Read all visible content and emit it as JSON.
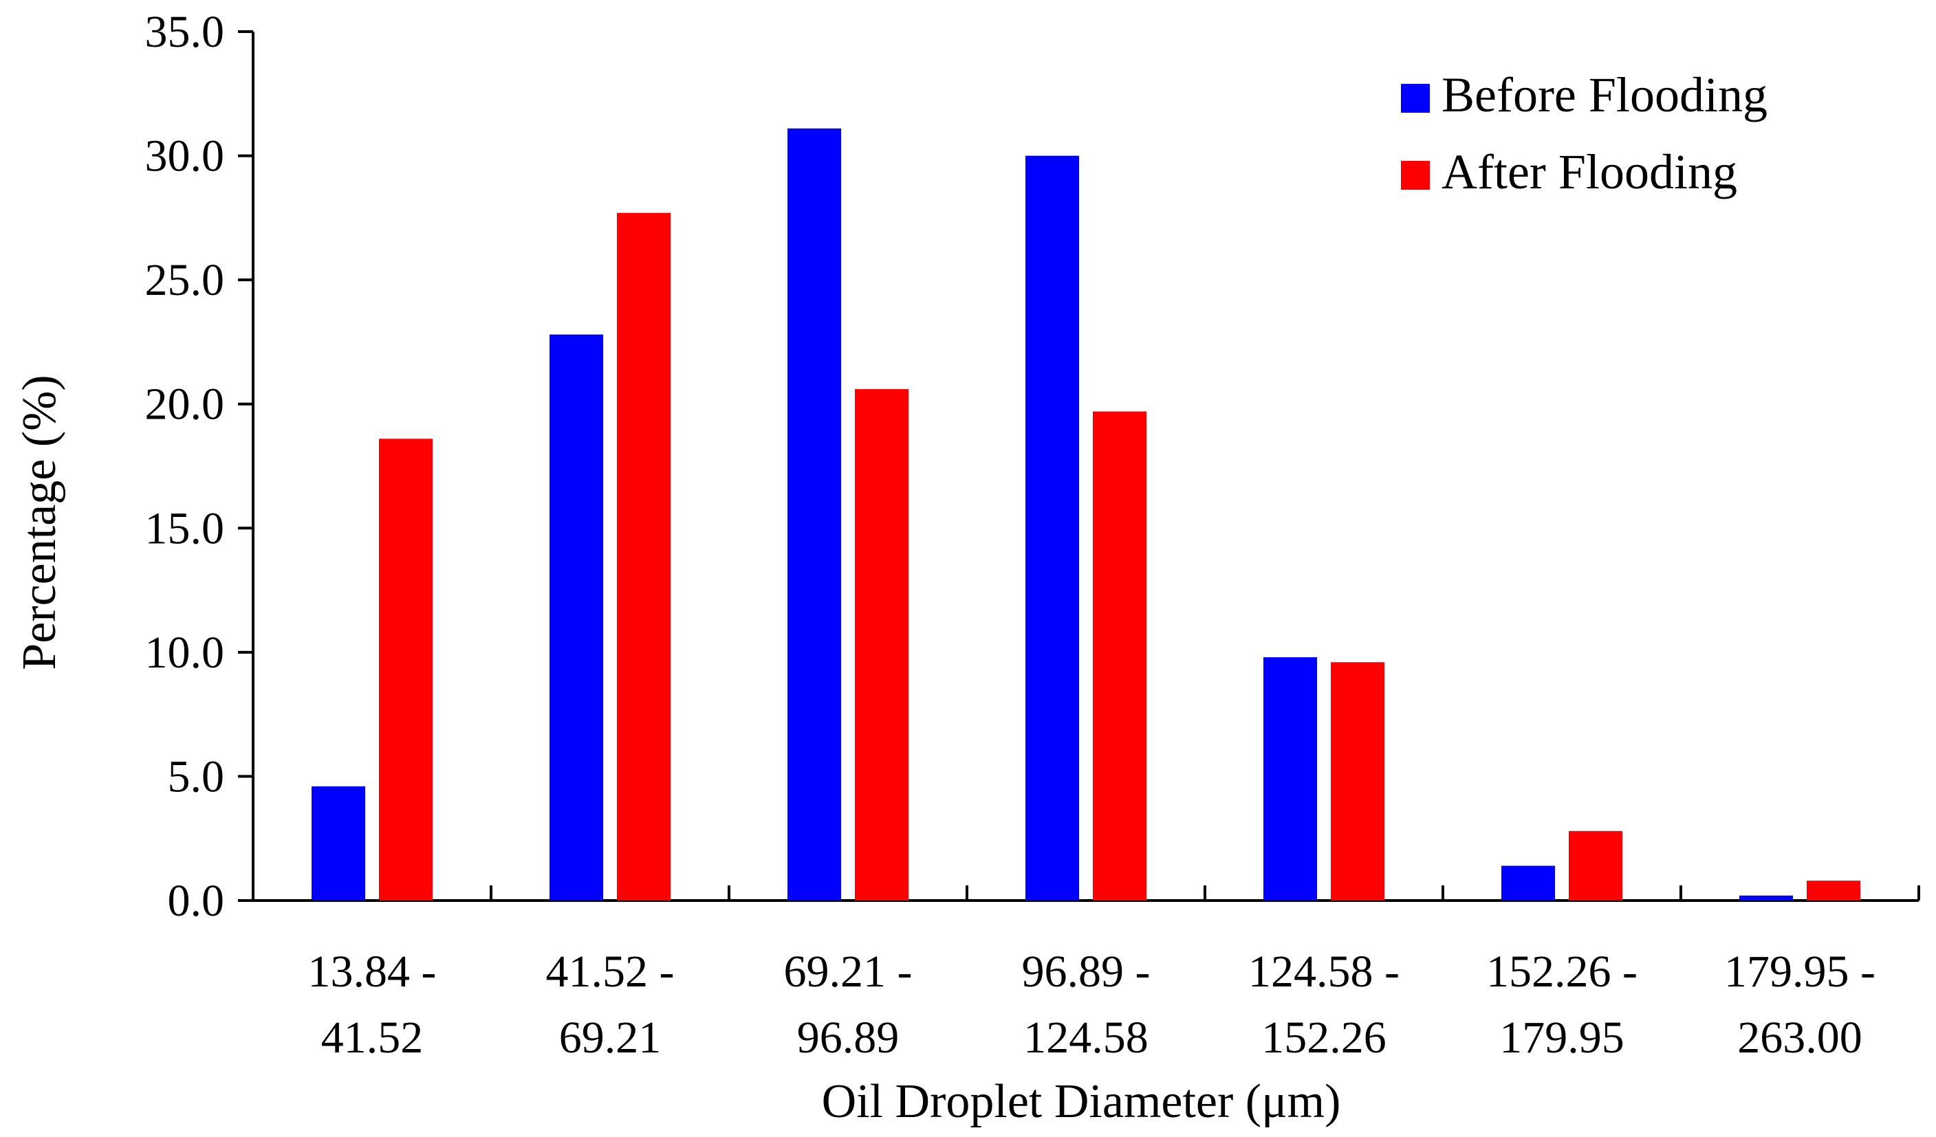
{
  "chart_data": {
    "type": "bar",
    "title": "",
    "xlabel": "Oil Droplet Diameter (μm)",
    "ylabel": "Percentage (%)",
    "ylim": [
      0,
      35
    ],
    "yticks": [
      "0.0",
      "5.0",
      "10.0",
      "15.0",
      "20.0",
      "25.0",
      "30.0",
      "35.0"
    ],
    "categories": [
      [
        "13.84 -",
        "41.52"
      ],
      [
        "41.52 -",
        "69.21"
      ],
      [
        "69.21 -",
        "96.89"
      ],
      [
        "96.89 -",
        "124.58"
      ],
      [
        "124.58 -",
        "152.26"
      ],
      [
        "152.26 -",
        "179.95"
      ],
      [
        "179.95 -",
        "263.00"
      ]
    ],
    "series": [
      {
        "name": "Before Flooding",
        "color": "#0000ff",
        "values": [
          4.6,
          22.8,
          31.1,
          30.0,
          9.8,
          1.4,
          0.2
        ]
      },
      {
        "name": "After Flooding",
        "color": "#ff0000",
        "values": [
          18.6,
          27.7,
          20.6,
          19.7,
          9.6,
          2.8,
          0.8
        ]
      }
    ],
    "legend": "top-right",
    "grid": false
  }
}
